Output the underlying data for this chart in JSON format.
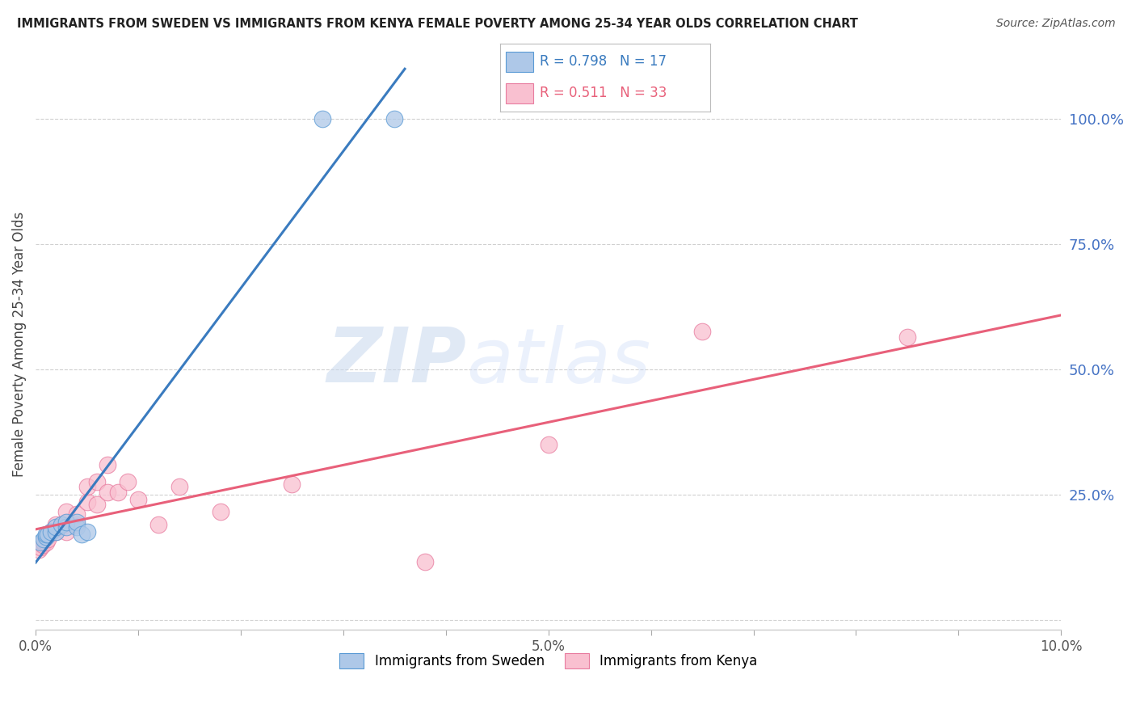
{
  "title": "IMMIGRANTS FROM SWEDEN VS IMMIGRANTS FROM KENYA FEMALE POVERTY AMONG 25-34 YEAR OLDS CORRELATION CHART",
  "source": "Source: ZipAtlas.com",
  "ylabel": "Female Poverty Among 25-34 Year Olds",
  "xlim": [
    0.0,
    0.1
  ],
  "ylim": [
    -0.02,
    1.12
  ],
  "ytick_vals": [
    0.0,
    0.25,
    0.5,
    0.75,
    1.0
  ],
  "ytick_labels": [
    "",
    "25.0%",
    "50.0%",
    "75.0%",
    "100.0%"
  ],
  "xtick_vals": [
    0.0,
    0.01,
    0.02,
    0.03,
    0.04,
    0.05,
    0.06,
    0.07,
    0.08,
    0.09,
    0.1
  ],
  "xtick_labels": [
    "0.0%",
    "",
    "",
    "",
    "",
    "5.0%",
    "",
    "",
    "",
    "",
    "10.0%"
  ],
  "sweden_dot_color": "#aec8e8",
  "kenya_dot_color": "#f9c0d0",
  "sweden_edge_color": "#5b9bd5",
  "kenya_edge_color": "#e87da0",
  "sweden_line_color": "#3a7bbf",
  "kenya_line_color": "#e8607a",
  "sweden_R": 0.798,
  "sweden_N": 17,
  "kenya_R": 0.511,
  "kenya_N": 33,
  "sweden_scatter_x": [
    0.0005,
    0.0008,
    0.001,
    0.001,
    0.0012,
    0.0015,
    0.002,
    0.002,
    0.0025,
    0.003,
    0.003,
    0.004,
    0.004,
    0.0045,
    0.005,
    0.028,
    0.035
  ],
  "sweden_scatter_y": [
    0.155,
    0.16,
    0.165,
    0.17,
    0.17,
    0.175,
    0.175,
    0.185,
    0.19,
    0.185,
    0.195,
    0.185,
    0.195,
    0.17,
    0.175,
    1.0,
    1.0
  ],
  "kenya_scatter_x": [
    0.0003,
    0.0005,
    0.0007,
    0.0008,
    0.001,
    0.001,
    0.0012,
    0.0015,
    0.002,
    0.002,
    0.0025,
    0.003,
    0.003,
    0.003,
    0.004,
    0.004,
    0.005,
    0.005,
    0.006,
    0.006,
    0.007,
    0.007,
    0.008,
    0.009,
    0.01,
    0.012,
    0.014,
    0.018,
    0.025,
    0.038,
    0.05,
    0.065,
    0.085
  ],
  "kenya_scatter_y": [
    0.14,
    0.145,
    0.15,
    0.155,
    0.155,
    0.165,
    0.16,
    0.175,
    0.175,
    0.19,
    0.185,
    0.175,
    0.195,
    0.215,
    0.19,
    0.21,
    0.235,
    0.265,
    0.23,
    0.275,
    0.255,
    0.31,
    0.255,
    0.275,
    0.24,
    0.19,
    0.265,
    0.215,
    0.27,
    0.115,
    0.35,
    0.575,
    0.565
  ],
  "watermark_zip": "ZIP",
  "watermark_atlas": "atlas",
  "legend_sweden": "Immigrants from Sweden",
  "legend_kenya": "Immigrants from Kenya",
  "background_color": "#ffffff",
  "grid_color": "#d0d0d0",
  "ytick_color": "#4472c4",
  "xtick_color": "#555555",
  "title_color": "#222222",
  "source_color": "#555555"
}
